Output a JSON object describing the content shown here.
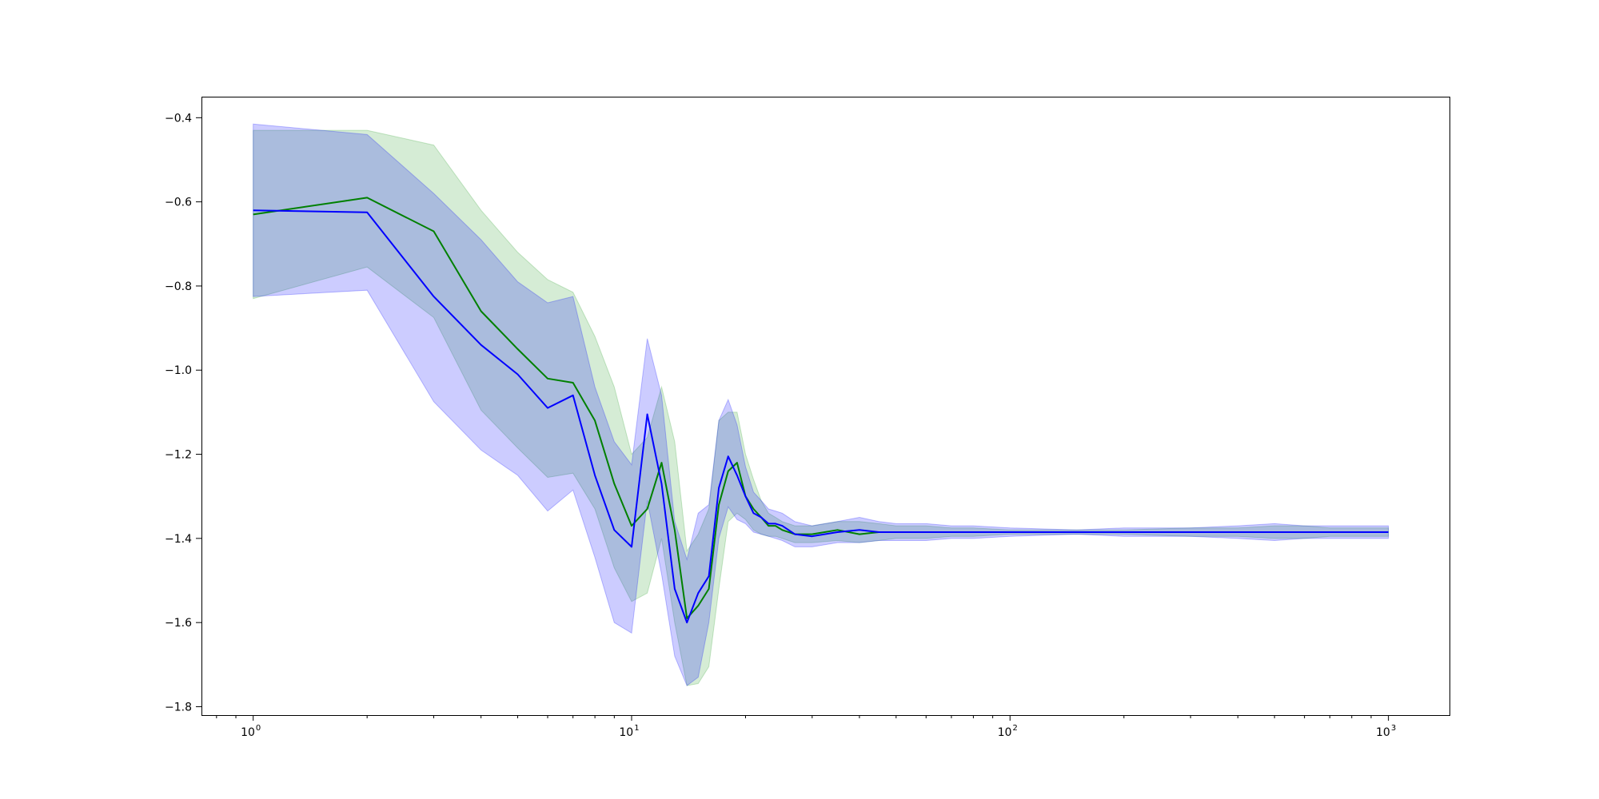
{
  "chart_data": {
    "type": "line",
    "title": "",
    "xlabel": "",
    "ylabel": "",
    "xscale": "log",
    "xlim": [
      0.73,
      1450
    ],
    "ylim": [
      -1.82,
      -0.35
    ],
    "grid": false,
    "x_ticks": [
      {
        "value": 1,
        "base": "10",
        "exp": "0"
      },
      {
        "value": 10,
        "base": "10",
        "exp": "1"
      },
      {
        "value": 100,
        "base": "10",
        "exp": "2"
      },
      {
        "value": 1000,
        "base": "10",
        "exp": "3"
      }
    ],
    "y_ticks": [
      {
        "value": -0.4,
        "label": "−0.4"
      },
      {
        "value": -0.6,
        "label": "−0.6"
      },
      {
        "value": -0.8,
        "label": "−0.8"
      },
      {
        "value": -1.0,
        "label": "−1.0"
      },
      {
        "value": -1.2,
        "label": "−1.2"
      },
      {
        "value": -1.4,
        "label": "−1.4"
      },
      {
        "value": -1.6,
        "label": "−1.6"
      },
      {
        "value": -1.8,
        "label": "−1.8"
      }
    ],
    "series": [
      {
        "color": "#008000",
        "band_color": "#2ca02c",
        "x": [
          1,
          2,
          3,
          4,
          5,
          6,
          7,
          8,
          9,
          10,
          11,
          12,
          13,
          14,
          15,
          16,
          17,
          18,
          19,
          20,
          21,
          22,
          23,
          24,
          25,
          27,
          30,
          35,
          40,
          45,
          50,
          60,
          70,
          80,
          100,
          150,
          200,
          300,
          400,
          500,
          600,
          700,
          800,
          1000
        ],
        "y": [
          -0.63,
          -0.59,
          -0.67,
          -0.86,
          -0.95,
          -1.02,
          -1.03,
          -1.12,
          -1.27,
          -1.37,
          -1.33,
          -1.22,
          -1.38,
          -1.59,
          -1.56,
          -1.52,
          -1.32,
          -1.24,
          -1.22,
          -1.3,
          -1.33,
          -1.35,
          -1.37,
          -1.37,
          -1.38,
          -1.39,
          -1.39,
          -1.38,
          -1.39,
          -1.385,
          -1.385,
          -1.385,
          -1.385,
          -1.385,
          -1.385,
          -1.385,
          -1.385,
          -1.385,
          -1.385,
          -1.385,
          -1.385,
          -1.385,
          -1.385,
          -1.385
        ],
        "lower": [
          -0.83,
          -0.755,
          -0.875,
          -1.095,
          -1.185,
          -1.255,
          -1.245,
          -1.33,
          -1.47,
          -1.55,
          -1.53,
          -1.4,
          -1.6,
          -1.75,
          -1.745,
          -1.705,
          -1.52,
          -1.36,
          -1.34,
          -1.355,
          -1.38,
          -1.39,
          -1.395,
          -1.395,
          -1.4,
          -1.41,
          -1.41,
          -1.405,
          -1.41,
          -1.405,
          -1.4,
          -1.4,
          -1.395,
          -1.395,
          -1.39,
          -1.39,
          -1.39,
          -1.395,
          -1.395,
          -1.4,
          -1.4,
          -1.395,
          -1.395,
          -1.395
        ],
        "upper": [
          -0.43,
          -0.43,
          -0.465,
          -0.62,
          -0.72,
          -0.785,
          -0.815,
          -0.92,
          -1.04,
          -1.2,
          -1.16,
          -1.04,
          -1.17,
          -1.43,
          -1.39,
          -1.33,
          -1.12,
          -1.1,
          -1.1,
          -1.2,
          -1.26,
          -1.31,
          -1.34,
          -1.35,
          -1.36,
          -1.37,
          -1.37,
          -1.36,
          -1.36,
          -1.365,
          -1.37,
          -1.37,
          -1.375,
          -1.375,
          -1.38,
          -1.38,
          -1.38,
          -1.375,
          -1.375,
          -1.37,
          -1.37,
          -1.375,
          -1.375,
          -1.375
        ]
      },
      {
        "color": "#0000ff",
        "band_color": "#0000ff",
        "x": [
          1,
          2,
          3,
          4,
          5,
          6,
          7,
          8,
          9,
          10,
          11,
          12,
          13,
          14,
          15,
          16,
          17,
          18,
          19,
          20,
          21,
          22,
          23,
          24,
          25,
          27,
          30,
          35,
          40,
          45,
          50,
          60,
          70,
          80,
          100,
          150,
          200,
          300,
          400,
          500,
          600,
          700,
          800,
          1000
        ],
        "y": [
          -0.62,
          -0.625,
          -0.825,
          -0.94,
          -1.01,
          -1.09,
          -1.06,
          -1.25,
          -1.38,
          -1.42,
          -1.105,
          -1.27,
          -1.52,
          -1.6,
          -1.53,
          -1.49,
          -1.28,
          -1.205,
          -1.25,
          -1.3,
          -1.34,
          -1.35,
          -1.365,
          -1.365,
          -1.37,
          -1.39,
          -1.395,
          -1.385,
          -1.38,
          -1.385,
          -1.385,
          -1.385,
          -1.385,
          -1.385,
          -1.385,
          -1.385,
          -1.385,
          -1.385,
          -1.385,
          -1.385,
          -1.385,
          -1.385,
          -1.385,
          -1.385
        ],
        "lower": [
          -0.825,
          -0.81,
          -1.075,
          -1.19,
          -1.25,
          -1.335,
          -1.285,
          -1.445,
          -1.6,
          -1.625,
          -1.31,
          -1.485,
          -1.68,
          -1.75,
          -1.73,
          -1.6,
          -1.4,
          -1.325,
          -1.355,
          -1.365,
          -1.385,
          -1.39,
          -1.395,
          -1.4,
          -1.405,
          -1.42,
          -1.42,
          -1.41,
          -1.41,
          -1.405,
          -1.405,
          -1.405,
          -1.4,
          -1.4,
          -1.395,
          -1.39,
          -1.395,
          -1.395,
          -1.4,
          -1.405,
          -1.4,
          -1.4,
          -1.4,
          -1.4
        ],
        "upper": [
          -0.415,
          -0.44,
          -0.58,
          -0.69,
          -0.79,
          -0.84,
          -0.825,
          -1.04,
          -1.17,
          -1.225,
          -0.925,
          -1.06,
          -1.36,
          -1.45,
          -1.34,
          -1.32,
          -1.12,
          -1.07,
          -1.13,
          -1.23,
          -1.29,
          -1.31,
          -1.33,
          -1.335,
          -1.34,
          -1.36,
          -1.37,
          -1.36,
          -1.35,
          -1.36,
          -1.365,
          -1.365,
          -1.37,
          -1.37,
          -1.375,
          -1.38,
          -1.375,
          -1.375,
          -1.37,
          -1.365,
          -1.37,
          -1.37,
          -1.37,
          -1.37
        ]
      }
    ]
  }
}
